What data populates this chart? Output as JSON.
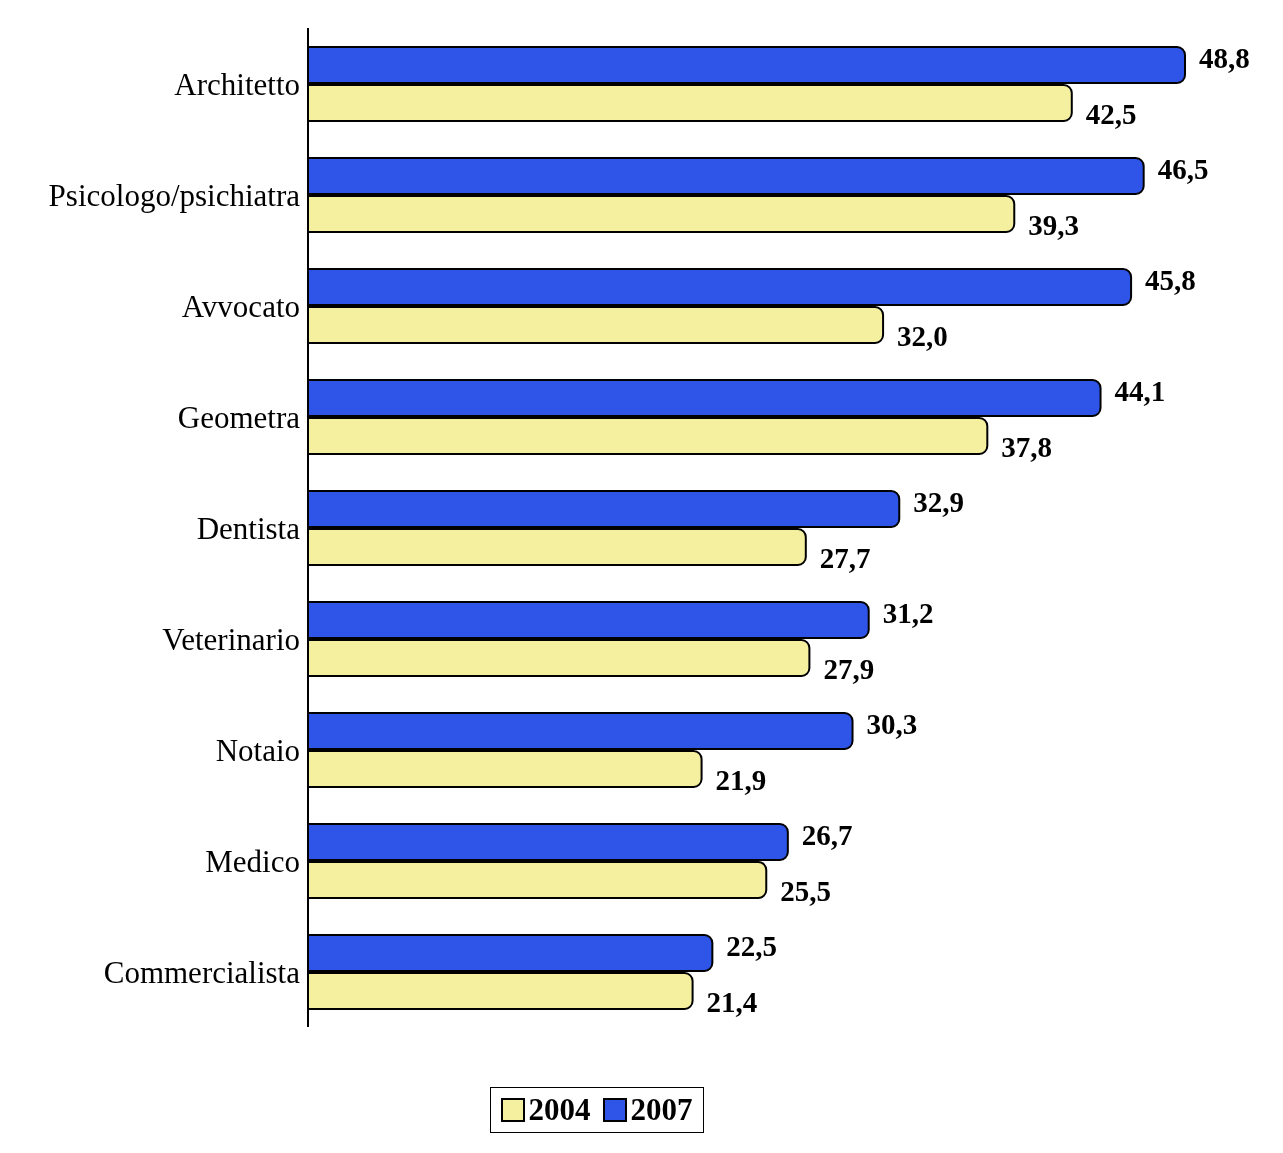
{
  "chart_data": {
    "type": "bar",
    "orientation": "horizontal",
    "categories": [
      "Architetto",
      "Psicologo/psichiatra",
      "Avvocato",
      "Geometra",
      "Dentista",
      "Veterinario",
      "Notaio",
      "Medico",
      "Commercialista"
    ],
    "series": [
      {
        "name": "2004",
        "color": "#f4f0a0",
        "values": [
          42.5,
          39.3,
          32.0,
          37.8,
          27.7,
          27.9,
          21.9,
          25.5,
          21.4
        ],
        "value_labels": [
          "42,5",
          "39,3",
          "32,0",
          "37,8",
          "27,7",
          "27,9",
          "21,9",
          "25,5",
          "21,4"
        ]
      },
      {
        "name": "2007",
        "color": "#2f55e8",
        "values": [
          48.8,
          46.5,
          45.8,
          44.1,
          32.9,
          31.2,
          30.3,
          26.7,
          22.5
        ],
        "value_labels": [
          "48,8",
          "46,5",
          "45,8",
          "44,1",
          "32,9",
          "31,2",
          "30,3",
          "26,7",
          "22,5"
        ]
      }
    ],
    "legend": "bottom",
    "grid": false
  }
}
